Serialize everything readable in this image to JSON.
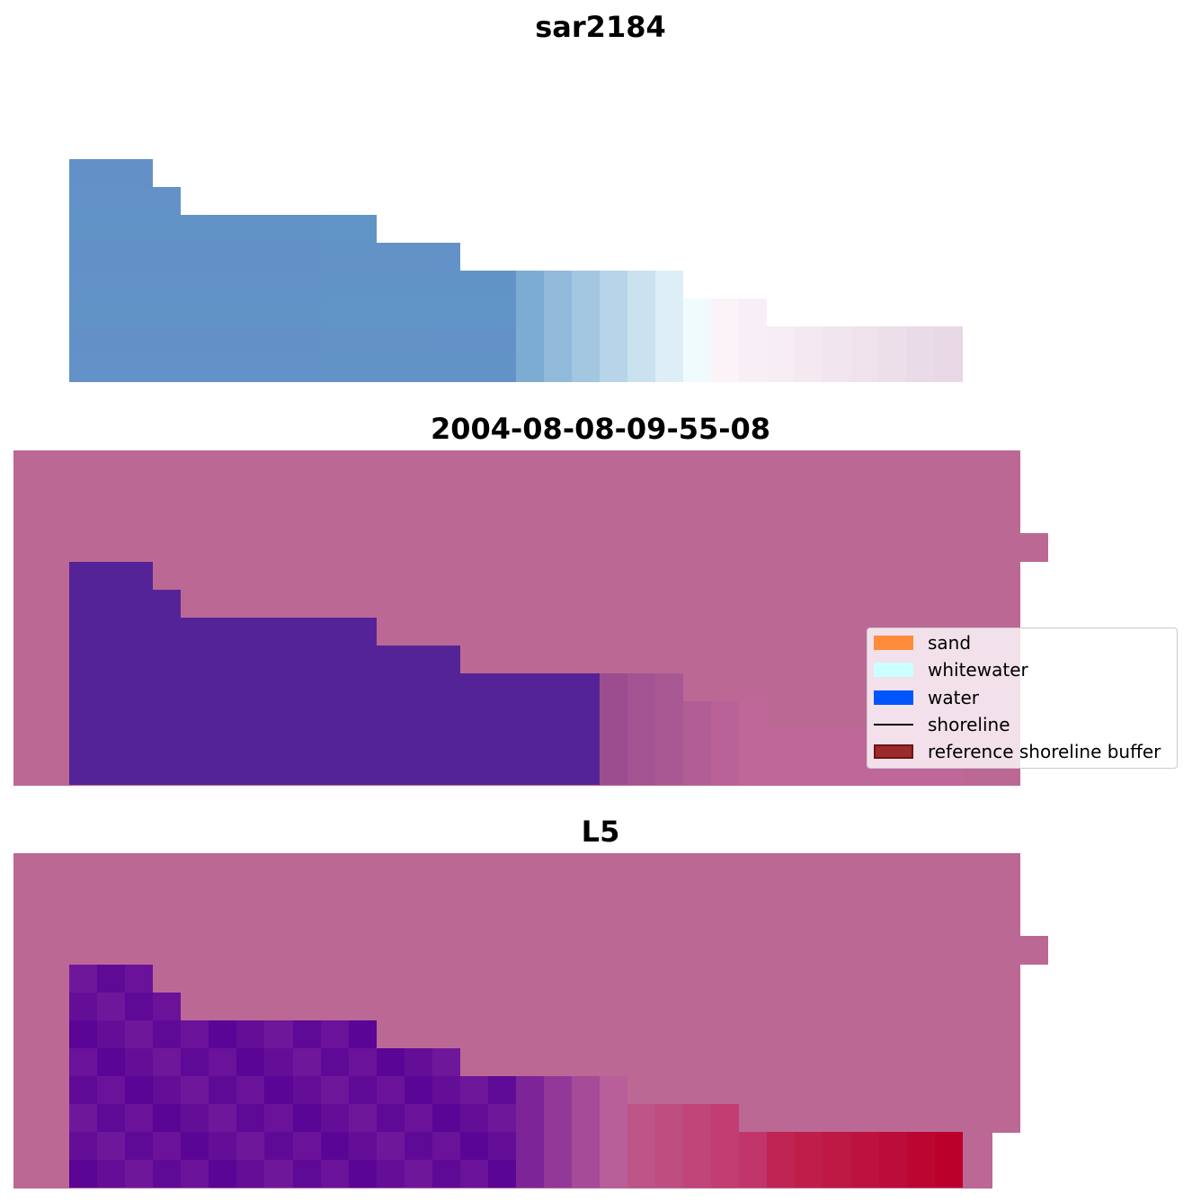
{
  "titles": {
    "panel1": "sar2184",
    "panel2": "2004-08-08-09-55-08",
    "panel3": "L5"
  },
  "legend": {
    "items": [
      {
        "label": "sand",
        "color": "#ff8c3a",
        "kind": "patch"
      },
      {
        "label": "whitewater",
        "color": "#ccffff",
        "kind": "patch"
      },
      {
        "label": "water",
        "color": "#0055ff",
        "kind": "patch"
      },
      {
        "label": "shoreline",
        "color": "#000000",
        "kind": "line"
      },
      {
        "label": "reference shoreline buffer",
        "color": "#9b2b2b",
        "kind": "patch"
      }
    ]
  },
  "colors": {
    "background_buffer": "#bc6895",
    "sar_water": "#6391c7",
    "classified_water": "#542397",
    "l5_water": "#6a159a",
    "l5_sand_edge": "#bb002c"
  }
}
